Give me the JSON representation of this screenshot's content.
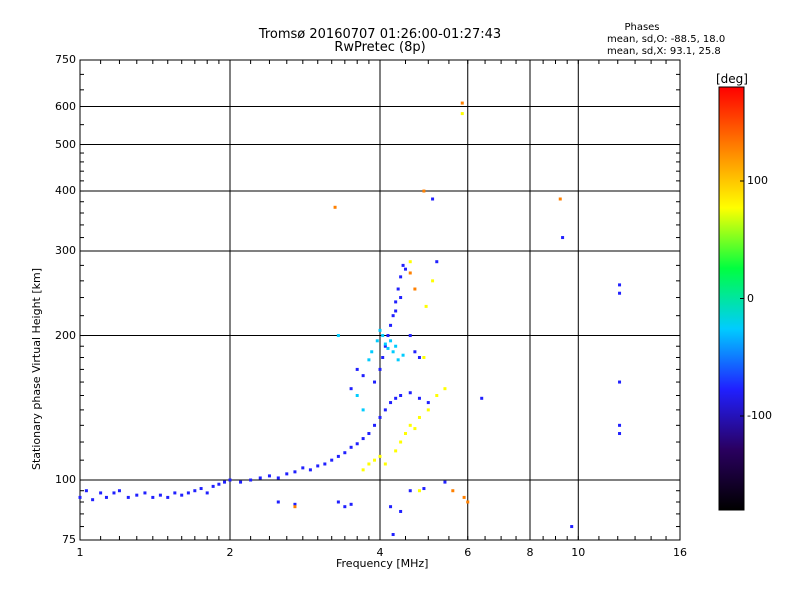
{
  "header": {
    "title": "Tromsø 20160707 01:26:00-01:27:43",
    "subtitle": "RwPretec (8p)",
    "phases_title": "Phases",
    "phases_o": "mean, sd,O: -88.5, 18.0",
    "phases_x": "mean, sd,X:  93.1, 25.8"
  },
  "chart_data": {
    "type": "scatter",
    "title": "Tromsø 20160707 01:26:00-01:27:43",
    "subtitle": "RwPretec (8p)",
    "xlabel": "Frequency [MHz]",
    "ylabel": "Stationary phase Virtual Height [km]",
    "xscale": "log",
    "yscale": "log",
    "xlim": [
      1,
      16
    ],
    "ylim": [
      75,
      750
    ],
    "x_ticks": [
      1,
      2,
      4,
      6,
      8,
      10,
      16
    ],
    "x_tick_labels": [
      "1",
      "2",
      "4",
      "6",
      "8",
      "10",
      "16"
    ],
    "y_ticks": [
      75,
      100,
      200,
      300,
      400,
      500,
      600,
      750
    ],
    "y_tick_labels": [
      "75",
      "100",
      "200",
      "300",
      "400",
      "500",
      "600",
      "750"
    ],
    "x_gridlines": [
      2,
      4,
      6,
      8,
      10
    ],
    "y_gridlines": [
      100,
      200,
      300,
      400,
      500,
      600
    ],
    "grid": true,
    "colorbar": {
      "label": "[deg]",
      "range": [
        -180,
        180
      ],
      "ticks": [
        100,
        0,
        -100
      ],
      "tick_labels": [
        "100",
        "0",
        "-100"
      ],
      "colors": [
        "#000000",
        "#2a0060",
        "#2020ff",
        "#00ccff",
        "#00ff40",
        "#ffff00",
        "#ff8000",
        "#ff0000"
      ]
    },
    "series": [
      {
        "role": "O-trace low band",
        "color_phase": -100,
        "points": [
          [
            1.0,
            92
          ],
          [
            1.03,
            95
          ],
          [
            1.06,
            91
          ],
          [
            1.1,
            94
          ],
          [
            1.13,
            92
          ],
          [
            1.17,
            94
          ],
          [
            1.2,
            95
          ],
          [
            1.25,
            92
          ],
          [
            1.3,
            93
          ],
          [
            1.35,
            94
          ],
          [
            1.4,
            92
          ],
          [
            1.45,
            93
          ],
          [
            1.5,
            92
          ],
          [
            1.55,
            94
          ],
          [
            1.6,
            93
          ],
          [
            1.65,
            94
          ],
          [
            1.7,
            95
          ],
          [
            1.75,
            96
          ],
          [
            1.8,
            94
          ],
          [
            1.85,
            97
          ],
          [
            1.9,
            98
          ],
          [
            1.95,
            99
          ],
          [
            2.0,
            100
          ],
          [
            2.1,
            99
          ],
          [
            2.2,
            100
          ],
          [
            2.3,
            101
          ],
          [
            2.4,
            102
          ],
          [
            2.5,
            101
          ],
          [
            2.6,
            103
          ],
          [
            2.7,
            104
          ],
          [
            2.8,
            106
          ],
          [
            2.9,
            105
          ],
          [
            3.0,
            107
          ],
          [
            3.1,
            108
          ],
          [
            3.2,
            110
          ],
          [
            3.3,
            112
          ],
          [
            3.4,
            114
          ],
          [
            3.5,
            117
          ],
          [
            3.6,
            119
          ],
          [
            3.7,
            122
          ],
          [
            3.8,
            125
          ],
          [
            3.9,
            130
          ],
          [
            4.0,
            135
          ],
          [
            4.1,
            140
          ],
          [
            4.2,
            145
          ],
          [
            4.3,
            148
          ],
          [
            4.4,
            150
          ],
          [
            4.6,
            152
          ],
          [
            4.8,
            148
          ],
          [
            5.0,
            145
          ]
        ]
      },
      {
        "role": "upper O-trace",
        "color_phase": -100,
        "points": [
          [
            3.9,
            160
          ],
          [
            4.0,
            170
          ],
          [
            4.05,
            180
          ],
          [
            4.1,
            190
          ],
          [
            4.15,
            200
          ],
          [
            4.2,
            210
          ],
          [
            4.25,
            220
          ],
          [
            4.3,
            235
          ],
          [
            4.35,
            250
          ],
          [
            4.4,
            265
          ],
          [
            4.45,
            280
          ],
          [
            4.5,
            275
          ],
          [
            4.4,
            240
          ],
          [
            4.3,
            225
          ],
          [
            4.6,
            200
          ],
          [
            4.7,
            185
          ],
          [
            4.8,
            180
          ],
          [
            3.6,
            170
          ],
          [
            3.7,
            165
          ],
          [
            3.5,
            155
          ]
        ]
      },
      {
        "role": "cyan cluster",
        "color_phase": -40,
        "points": [
          [
            3.85,
            185
          ],
          [
            3.95,
            195
          ],
          [
            4.0,
            205
          ],
          [
            4.05,
            200
          ],
          [
            4.1,
            192
          ],
          [
            4.15,
            188
          ],
          [
            4.2,
            195
          ],
          [
            4.25,
            185
          ],
          [
            4.3,
            190
          ],
          [
            4.35,
            178
          ],
          [
            4.45,
            182
          ],
          [
            3.8,
            178
          ],
          [
            3.3,
            200
          ],
          [
            3.6,
            150
          ],
          [
            3.7,
            140
          ]
        ]
      },
      {
        "role": "yellow X-trace",
        "color_phase": 100,
        "points": [
          [
            3.7,
            105
          ],
          [
            3.8,
            108
          ],
          [
            3.9,
            110
          ],
          [
            4.0,
            112
          ],
          [
            4.1,
            108
          ],
          [
            4.3,
            115
          ],
          [
            4.4,
            120
          ],
          [
            4.5,
            125
          ],
          [
            4.6,
            130
          ],
          [
            4.7,
            128
          ],
          [
            4.8,
            135
          ],
          [
            5.0,
            140
          ],
          [
            5.2,
            150
          ],
          [
            5.4,
            155
          ],
          [
            4.9,
            180
          ],
          [
            4.95,
            230
          ],
          [
            5.1,
            260
          ],
          [
            4.6,
            285
          ],
          [
            4.8,
            95
          ],
          [
            5.85,
            580
          ]
        ]
      },
      {
        "role": "scattered points",
        "color_phase": -100,
        "points": [
          [
            3.3,
            90
          ],
          [
            3.4,
            88
          ],
          [
            3.5,
            89
          ],
          [
            2.5,
            90
          ],
          [
            2.7,
            89
          ],
          [
            4.2,
            88
          ],
          [
            4.4,
            86
          ],
          [
            4.6,
            95
          ],
          [
            4.9,
            96
          ],
          [
            5.4,
            99
          ],
          [
            6.4,
            148
          ],
          [
            5.1,
            385
          ],
          [
            5.2,
            285
          ],
          [
            9.3,
            320
          ],
          [
            9.7,
            80
          ],
          [
            12.1,
            255
          ],
          [
            12.1,
            245
          ],
          [
            12.1,
            160
          ],
          [
            12.1,
            130
          ],
          [
            12.1,
            125
          ],
          [
            4.25,
            77
          ]
        ]
      },
      {
        "role": "red/orange outliers",
        "color_phase": 150,
        "points": [
          [
            3.25,
            370
          ],
          [
            4.9,
            400
          ],
          [
            5.85,
            610
          ],
          [
            9.2,
            385
          ],
          [
            4.6,
            270
          ],
          [
            4.7,
            250
          ],
          [
            2.7,
            88
          ],
          [
            5.6,
            95
          ],
          [
            5.9,
            92
          ],
          [
            6.0,
            90
          ]
        ]
      }
    ]
  }
}
